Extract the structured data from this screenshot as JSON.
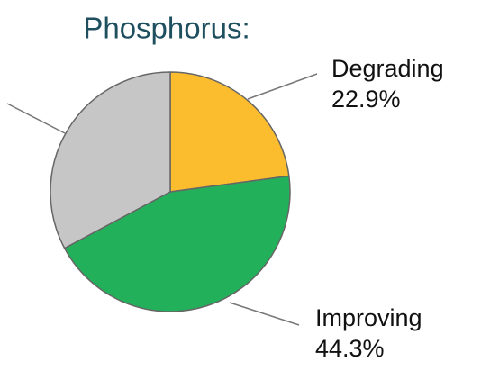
{
  "chart_data": {
    "type": "pie",
    "title": "Phosphorus:",
    "categories": [
      "Degrading",
      "Improving",
      null
    ],
    "values": [
      22.9,
      44.3,
      32.8
    ],
    "value_labels": [
      "22.9%",
      "44.3%",
      null
    ],
    "colors": [
      "#fbbc2e",
      "#22b15a",
      "#c6c6c6"
    ]
  }
}
